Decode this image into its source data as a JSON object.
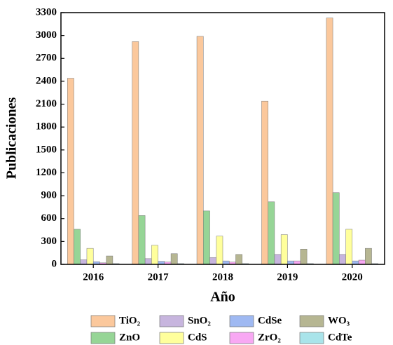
{
  "chart_data": {
    "type": "bar",
    "categories": [
      "2016",
      "2017",
      "2018",
      "2019",
      "2020"
    ],
    "series": [
      {
        "name": "TiO₂",
        "color": "#fbc89c",
        "values": [
          2440,
          2920,
          2990,
          2140,
          3230
        ]
      },
      {
        "name": "ZnO",
        "color": "#96d596",
        "values": [
          460,
          640,
          700,
          820,
          940
        ]
      },
      {
        "name": "SnO₂",
        "color": "#c7b5de",
        "values": [
          60,
          75,
          90,
          130,
          130
        ]
      },
      {
        "name": "CdS",
        "color": "#ffff9c",
        "values": [
          210,
          250,
          370,
          390,
          460
        ]
      },
      {
        "name": "CdSe",
        "color": "#9fb9f2",
        "values": [
          35,
          40,
          45,
          45,
          45
        ]
      },
      {
        "name": "ZrO₂",
        "color": "#f8a8f3",
        "values": [
          20,
          30,
          30,
          45,
          55
        ]
      },
      {
        "name": "WO₃",
        "color": "#b6b692",
        "values": [
          110,
          140,
          130,
          200,
          210
        ]
      },
      {
        "name": "CdTe",
        "color": "#a9e4ea",
        "values": [
          10,
          10,
          10,
          10,
          10
        ]
      }
    ],
    "xlabel": "Año",
    "ylabel": "Publicaciones",
    "ylim": [
      0,
      3300
    ],
    "yticks": [
      0,
      300,
      600,
      900,
      1200,
      1500,
      1800,
      2100,
      2400,
      2700,
      3000,
      3300
    ],
    "legend": "bottom"
  }
}
